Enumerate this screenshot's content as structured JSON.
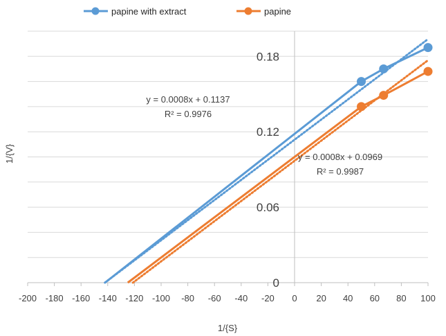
{
  "chart_data": {
    "type": "scatter",
    "xlabel": "1/{S}",
    "ylabel": "1/{V}",
    "xlim": [
      -200,
      100
    ],
    "ylim": [
      0,
      0.2
    ],
    "x_ticks": [
      "-200",
      "-180",
      "-160",
      "-140",
      "-120",
      "-100",
      "-80",
      "-60",
      "-40",
      "-20",
      "0",
      "20",
      "40",
      "60",
      "80",
      "100"
    ],
    "y_ticks": [
      "0",
      "0.06",
      "0.12",
      "0.18"
    ],
    "grid": true,
    "legend_position": "top",
    "series": [
      {
        "name": "papine with extract",
        "color": "#5B9BD5",
        "x": [
          50,
          66.7,
          100
        ],
        "y": [
          0.16,
          0.17,
          0.187
        ],
        "line_x": [
          -142,
          50,
          66.7,
          100
        ],
        "line_y": [
          0,
          0.16,
          0.17,
          0.187
        ],
        "trendline": {
          "slope": 0.0008,
          "intercept": 0.1137
        },
        "equation": "y = 0.0008x + 0.1137",
        "r2": "R² = 0.9976"
      },
      {
        "name": "papine",
        "color": "#ED7D31",
        "x": [
          50,
          66.7,
          100
        ],
        "y": [
          0.14,
          0.149,
          0.168
        ],
        "line_x": [
          -125,
          50,
          66.7,
          100
        ],
        "line_y": [
          0,
          0.14,
          0.149,
          0.168
        ],
        "trendline": {
          "slope": 0.0008,
          "intercept": 0.0969
        },
        "equation": "y = 0.0008x + 0.0969",
        "r2": "R² = 0.9987"
      }
    ]
  }
}
